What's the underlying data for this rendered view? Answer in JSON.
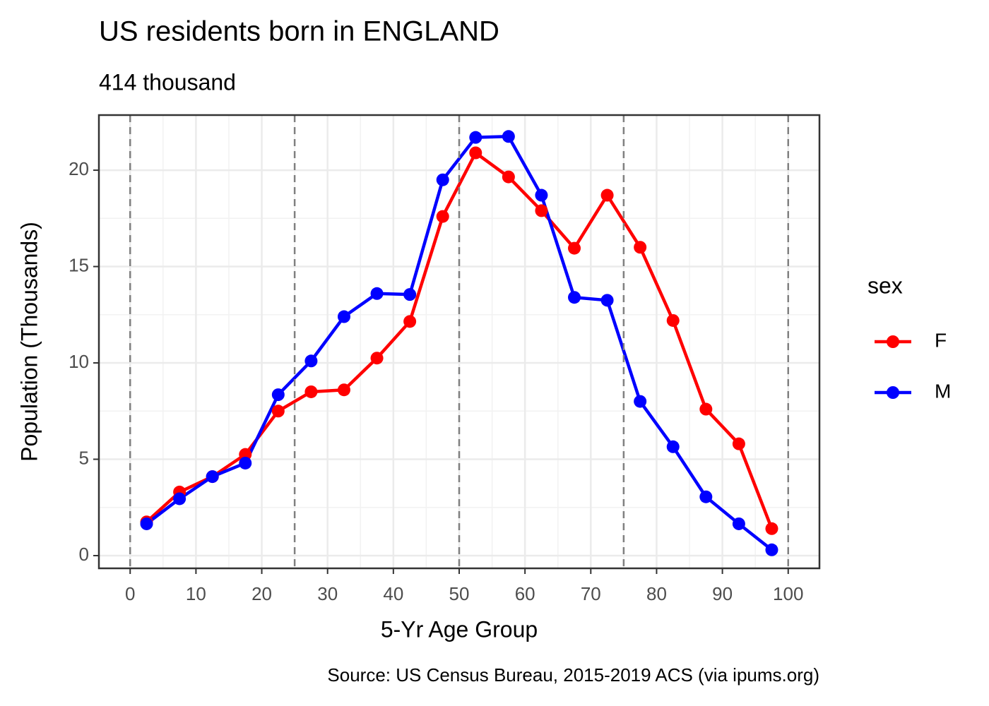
{
  "chart_data": {
    "type": "line",
    "title": "US residents born in ENGLAND",
    "subtitle": "414 thousand",
    "x_label": "5-Yr Age Group",
    "y_label": "Population (Thousands)",
    "caption": "Source: US Census Bureau, 2015-2019 ACS (via ipums.org)",
    "legend_title": "sex",
    "legend_position": "right",
    "grid": true,
    "x": [
      2.5,
      7.5,
      12.5,
      17.5,
      22.5,
      27.5,
      32.5,
      37.5,
      42.5,
      47.5,
      52.5,
      57.5,
      62.5,
      67.5,
      72.5,
      77.5,
      82.5,
      87.5,
      92.5,
      97.5
    ],
    "series": [
      {
        "name": "F",
        "color": "#ff0000",
        "values": [
          1.75,
          3.3,
          4.1,
          5.25,
          7.5,
          8.5,
          8.6,
          10.25,
          12.15,
          17.6,
          20.9,
          19.65,
          17.9,
          15.95,
          18.7,
          16.0,
          12.2,
          7.6,
          5.8,
          1.4
        ]
      },
      {
        "name": "M",
        "color": "#0000ff",
        "values": [
          1.65,
          2.95,
          4.1,
          4.8,
          8.35,
          10.1,
          12.4,
          13.6,
          13.55,
          19.5,
          21.7,
          21.75,
          18.7,
          13.4,
          13.25,
          8.0,
          5.65,
          3.05,
          1.65,
          0.3
        ]
      }
    ],
    "xlim": [
      -4.75,
      104.75
    ],
    "xticks": [
      0,
      10,
      20,
      30,
      40,
      50,
      60,
      70,
      80,
      90,
      100
    ],
    "ylim": [
      -0.66,
      22.86
    ],
    "yticks": [
      0,
      5,
      10,
      15,
      20
    ],
    "vlines": [
      0,
      25,
      50,
      75,
      100
    ]
  }
}
